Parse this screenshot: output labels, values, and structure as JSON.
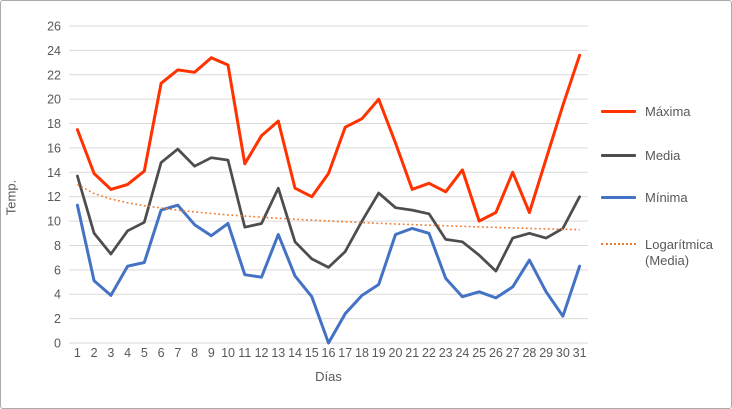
{
  "window": {
    "background": "#ffffff",
    "border_color": "#ababab"
  },
  "chart_data": {
    "type": "line",
    "title": "",
    "xlabel": "Días",
    "ylabel": "Temp.",
    "x": [
      1,
      2,
      3,
      4,
      5,
      6,
      7,
      8,
      9,
      10,
      11,
      12,
      13,
      14,
      15,
      16,
      17,
      18,
      19,
      20,
      21,
      22,
      23,
      24,
      25,
      26,
      27,
      28,
      29,
      30,
      31
    ],
    "ylim": [
      0,
      26
    ],
    "yticks": [
      0,
      2,
      4,
      6,
      8,
      10,
      12,
      14,
      16,
      18,
      20,
      22,
      24,
      26
    ],
    "grid": true,
    "legend_position": "right",
    "series": [
      {
        "name": "Máxima",
        "slug": "maxima",
        "color": "#ff3200",
        "style": "solid",
        "width": 3,
        "values": [
          17.5,
          13.9,
          12.6,
          13.0,
          14.1,
          21.3,
          22.4,
          22.2,
          23.4,
          22.8,
          14.7,
          17.0,
          18.2,
          12.7,
          12.0,
          13.9,
          17.7,
          18.4,
          20.0,
          16.4,
          12.6,
          13.1,
          12.4,
          14.2,
          10.0,
          10.7,
          14.0,
          10.7,
          15.1,
          19.5,
          23.6
        ]
      },
      {
        "name": "Media",
        "slug": "media",
        "color": "#4d4d4d",
        "style": "solid",
        "width": 2.75,
        "values": [
          13.7,
          9.0,
          7.3,
          9.2,
          9.9,
          14.8,
          15.9,
          14.5,
          15.2,
          15.0,
          9.5,
          9.8,
          12.7,
          8.3,
          6.9,
          6.2,
          7.5,
          10.0,
          12.3,
          11.1,
          10.9,
          10.6,
          8.5,
          8.3,
          7.2,
          5.9,
          8.6,
          9.0,
          8.6,
          9.4,
          12.0
        ]
      },
      {
        "name": "Mínima",
        "slug": "minima",
        "color": "#4472c4",
        "style": "solid",
        "width": 3,
        "values": [
          11.3,
          5.1,
          3.9,
          6.3,
          6.6,
          10.9,
          11.3,
          9.7,
          8.8,
          9.8,
          5.6,
          5.4,
          8.9,
          5.5,
          3.8,
          0.0,
          2.4,
          3.9,
          4.8,
          8.9,
          9.4,
          9.0,
          5.3,
          3.8,
          4.2,
          3.7,
          4.6,
          6.8,
          4.2,
          2.2,
          6.3
        ]
      },
      {
        "name": "Logarítmica (Media)",
        "slug": "logaritmica-media",
        "color": "#ed7d31",
        "style": "dotted",
        "width": 1.6,
        "values": [
          13.0,
          12.25,
          11.81,
          11.5,
          11.26,
          11.07,
          10.9,
          10.75,
          10.63,
          10.51,
          10.41,
          10.32,
          10.23,
          10.15,
          10.08,
          10.01,
          9.94,
          9.88,
          9.82,
          9.76,
          9.71,
          9.66,
          9.61,
          9.57,
          9.52,
          9.48,
          9.44,
          9.4,
          9.36,
          9.33,
          9.29
        ]
      }
    ],
    "colors": {
      "gridline": "#d9d9d9",
      "tick_text": "#595959"
    }
  }
}
